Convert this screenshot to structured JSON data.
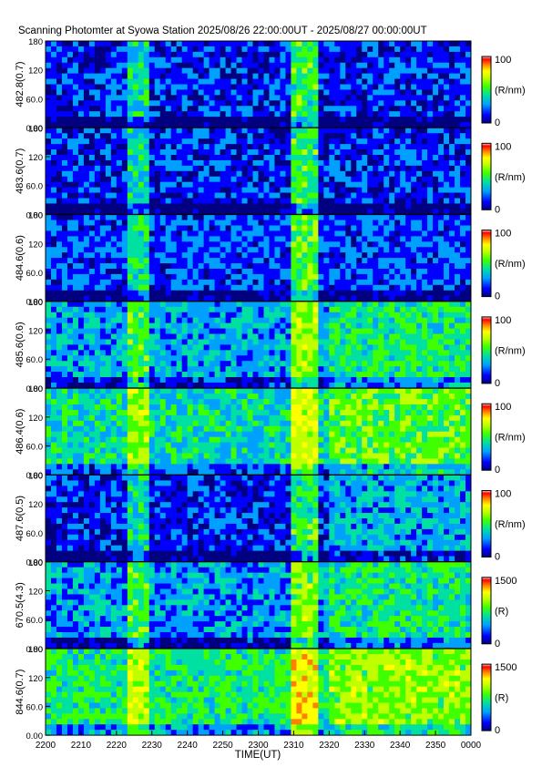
{
  "title": "Scanning Photomter at Syowa Station 2025/08/26 22:00:00UT - 2025/08/27 00:00:00UT",
  "chart_data": {
    "type": "heatmap",
    "xlabel": "TIME(UT)",
    "x_ticks": [
      "2200",
      "2210",
      "2220",
      "2230",
      "2240",
      "2250",
      "2300",
      "2310",
      "2320",
      "2330",
      "2340",
      "2350",
      "0000"
    ],
    "y_ticks": [
      "0.00",
      "60.0",
      "120",
      "180"
    ],
    "ylim": [
      0,
      180
    ],
    "colorscale": [
      "#000080",
      "#0000ff",
      "#00a0ff",
      "#00e0a0",
      "#40ff00",
      "#c0ff00",
      "#ffff00",
      "#ff8000",
      "#ff0000",
      "#ffffff"
    ],
    "panels": [
      {
        "label": "482.8(0.7)",
        "cmin": "0",
        "cmax": "100",
        "unit": "(R/nm)",
        "level": 0.22
      },
      {
        "label": "483.6(0.7)",
        "cmin": "0",
        "cmax": "100",
        "unit": "(R/nm)",
        "level": 0.22
      },
      {
        "label": "484.6(0.6)",
        "cmin": "0",
        "cmax": "100",
        "unit": "(R/nm)",
        "level": 0.27
      },
      {
        "label": "485.6(0.6)",
        "cmin": "0",
        "cmax": "100",
        "unit": "(R/nm)",
        "level": 0.38
      },
      {
        "label": "486.4(0.6)",
        "cmin": "0",
        "cmax": "100",
        "unit": "(R/nm)",
        "level": 0.48
      },
      {
        "label": "487.6(0.5)",
        "cmin": "0",
        "cmax": "100",
        "unit": "(R/nm)",
        "level": 0.22
      },
      {
        "label": "670.5(4.3)",
        "cmin": "0",
        "cmax": "1500",
        "unit": "(R)",
        "level": 0.35
      },
      {
        "label": "844.6(0.7)",
        "cmin": "0",
        "cmax": "1500",
        "unit": "(R)",
        "level": 0.55
      }
    ]
  }
}
